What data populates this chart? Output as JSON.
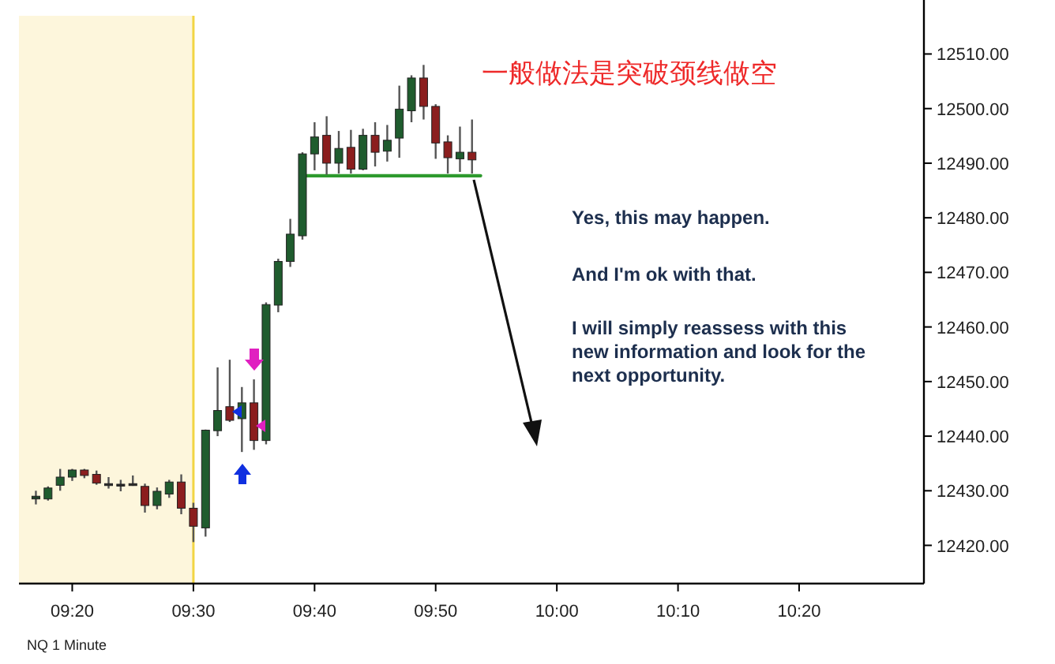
{
  "chart_data": {
    "type": "candlestick",
    "x": [
      9.2833,
      9.3,
      9.3167,
      9.3333,
      9.35,
      9.3667,
      9.3833,
      9.4,
      9.4167,
      9.4333,
      9.45,
      9.4667,
      9.4833,
      9.5,
      9.5167,
      9.5333,
      9.55,
      9.5667,
      9.5833,
      9.6,
      9.6167,
      9.6333,
      9.65,
      9.6667,
      9.6833,
      9.7,
      9.7167,
      9.7333,
      9.75,
      9.7667,
      9.7833,
      9.8,
      9.8167,
      9.8333,
      9.85,
      9.8667,
      9.8833
    ],
    "ohlc": [
      [
        12428.5,
        12430,
        12427.5,
        12429
      ],
      [
        12428.5,
        12430.8,
        12428.2,
        12430.5
      ],
      [
        12431,
        12434,
        12430,
        12432.5
      ],
      [
        12432.5,
        12434,
        12431.8,
        12433.8
      ],
      [
        12433.8,
        12434,
        12432.3,
        12432.8
      ],
      [
        12433,
        12433.7,
        12431.1,
        12431.4
      ],
      [
        12431.3,
        12432.5,
        12430.4,
        12431
      ],
      [
        12431,
        12432,
        12429.9,
        12431.2
      ],
      [
        12431.3,
        12432.8,
        12430.9,
        12431.2
      ],
      [
        12430.8,
        12431.3,
        12426,
        12427.3
      ],
      [
        12427.3,
        12430.6,
        12426.6,
        12429.9
      ],
      [
        12429.4,
        12432,
        12428.7,
        12431.6
      ],
      [
        12431.6,
        12433,
        12425.7,
        12426.8
      ],
      [
        12426.8,
        12427.8,
        12420.6,
        12423.5
      ],
      [
        12423.2,
        12441.2,
        12421.6,
        12441.1
      ],
      [
        12441,
        12452.6,
        12440,
        12444.7
      ],
      [
        12445.4,
        12454,
        12442.6,
        12442.9
      ],
      [
        12443.2,
        12449,
        12437.1,
        12446.1
      ],
      [
        12446.1,
        12450.4,
        12437.5,
        12439.2
      ],
      [
        12439.2,
        12464.5,
        12438.5,
        12464.1
      ],
      [
        12464,
        12472.5,
        12462.7,
        12472
      ],
      [
        12472,
        12479.8,
        12471,
        12477
      ],
      [
        12476.7,
        12492,
        12476,
        12491.7
      ],
      [
        12491.7,
        12497.5,
        12488.7,
        12494.8
      ],
      [
        12495.1,
        12498.6,
        12487.9,
        12490
      ],
      [
        12490,
        12495.9,
        12488.1,
        12492.7
      ],
      [
        12492.9,
        12496.1,
        12488.1,
        12488.9
      ],
      [
        12488.9,
        12496.3,
        12488.7,
        12495.1
      ],
      [
        12495.1,
        12497.5,
        12489.4,
        12492
      ],
      [
        12492.2,
        12497,
        12490.3,
        12494.2
      ],
      [
        12494.6,
        12504.2,
        12491,
        12499.9
      ],
      [
        12499.6,
        12506.1,
        12497.5,
        12505.6
      ],
      [
        12505.6,
        12508,
        12498,
        12500.4
      ],
      [
        12500.4,
        12500.8,
        12490.8,
        12493.7
      ],
      [
        12493.9,
        12495.1,
        12488.1,
        12491
      ],
      [
        12490.8,
        12496.7,
        12488.4,
        12492
      ],
      [
        12492,
        12498,
        12488.1,
        12490.6
      ]
    ],
    "colors": [
      "#1f3f28",
      "#1f5c2e",
      "#1f5c2e",
      "#1f5c2e",
      "#8b1e1e",
      "#8b1e1e",
      "#2a2a2a",
      "#2a2a2a",
      "#2a2a2a",
      "#8b1e1e",
      "#1f5c2e",
      "#1f5c2e",
      "#8b1e1e",
      "#8b1e1e",
      "#1f5c2e",
      "#1f5c2e",
      "#8b1e1e",
      "#1f5c2e",
      "#8b1e1e",
      "#1f5c2e",
      "#1f5c2e",
      "#1f5c2e",
      "#1f5c2e",
      "#1f5c2e",
      "#8b1e1e",
      "#1f5c2e",
      "#8b1e1e",
      "#1f5c2e",
      "#8b1e1e",
      "#1f5c2e",
      "#1f5c2e",
      "#1f5c2e",
      "#8b1e1e",
      "#8b1e1e",
      "#8b1e1e",
      "#1f5c2e",
      "#8b1e1e"
    ],
    "series": [
      {
        "type": "line",
        "color": "#2e9a2e",
        "x": [
          9.655,
          9.895
        ],
        "values": [
          12487.7,
          12487.7
        ]
      }
    ],
    "xlim": [
      9.26,
      10.505
    ],
    "xticks": [
      {
        "value": 9.3333,
        "label": "09:20"
      },
      {
        "value": 9.5,
        "label": "09:30"
      },
      {
        "value": 9.6667,
        "label": "09:40"
      },
      {
        "value": 9.8333,
        "label": "09:50"
      },
      {
        "value": 10,
        "label": "10:00"
      },
      {
        "value": 10.1667,
        "label": "10:10"
      },
      {
        "value": 10.3333,
        "label": "10:20"
      }
    ],
    "ylim": [
      12413,
      12517
    ],
    "yticks": [
      {
        "value": 12420,
        "label": "12420.00"
      },
      {
        "value": 12430,
        "label": "12430.00"
      },
      {
        "value": 12440,
        "label": "12440.00"
      },
      {
        "value": 12450,
        "label": "12450.00"
      },
      {
        "value": 12460,
        "label": "12460.00"
      },
      {
        "value": 12470,
        "label": "12470.00"
      },
      {
        "value": 12480,
        "label": "12480.00"
      },
      {
        "value": 12490,
        "label": "12490.00"
      },
      {
        "value": 12500,
        "label": "12500.00"
      },
      {
        "value": 12510,
        "label": "12510.00"
      }
    ],
    "bands": [
      {
        "axis": "x",
        "from": 9.26,
        "to": 9.5,
        "color": "#fdf6dc"
      }
    ],
    "ref_lines": [
      {
        "axis": "x",
        "value": 9.5,
        "color": "#f2d544"
      }
    ],
    "grid": false,
    "annotations": [
      "一般做法是突破颈线做空",
      "Yes, this may happen.",
      "And I'm ok with that.",
      "I will simply reassess with this new information and look for the next opportunity.",
      "NQ 1 Minute"
    ]
  }
}
